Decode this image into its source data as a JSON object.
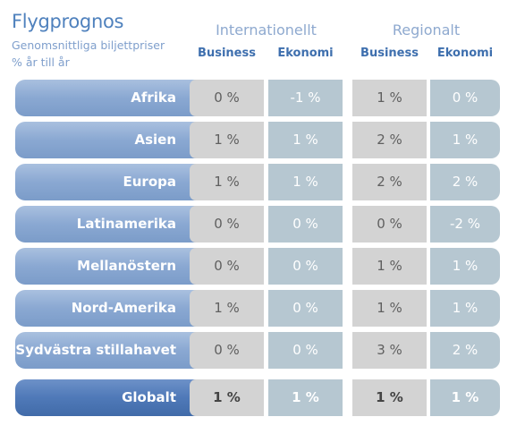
{
  "header": {
    "title": "Flygprognos",
    "subtitle_line1": "Genomsnittliga biljettpriser",
    "subtitle_line2": "% år till år"
  },
  "groups": {
    "international": "Internationellt",
    "regional": "Regionalt"
  },
  "columns": [
    "Business",
    "Ekonomi",
    "Business",
    "Ekonomi"
  ],
  "rows": [
    {
      "region": "Afrika",
      "values": [
        "0 %",
        "-1 %",
        "1 %",
        "0 %"
      ]
    },
    {
      "region": "Asien",
      "values": [
        "1 %",
        "1 %",
        "2 %",
        "1 %"
      ]
    },
    {
      "region": "Europa",
      "values": [
        "1 %",
        "1 %",
        "2 %",
        "2 %"
      ]
    },
    {
      "region": "Latinamerika",
      "values": [
        "0 %",
        "0 %",
        "0 %",
        "-2 %"
      ]
    },
    {
      "region": "Mellanöstern",
      "values": [
        "0 %",
        "0 %",
        "1 %",
        "1 %"
      ]
    },
    {
      "region": "Nord-Amerika",
      "values": [
        "1 %",
        "0 %",
        "1 %",
        "1 %"
      ]
    },
    {
      "region": "Sydvästra stillahavet",
      "values": [
        "0 %",
        "0 %",
        "3 %",
        "2 %"
      ]
    }
  ],
  "total": {
    "region": "Globalt",
    "values": [
      "1 %",
      "1 %",
      "1 %",
      "1 %"
    ]
  },
  "colors": {
    "accent": "#4f81bd",
    "row_band": "#8aa8d2",
    "total_band": "#4f79b8",
    "business_cell": "#d3d3d3",
    "economy_cell": "#b6c7d1"
  }
}
